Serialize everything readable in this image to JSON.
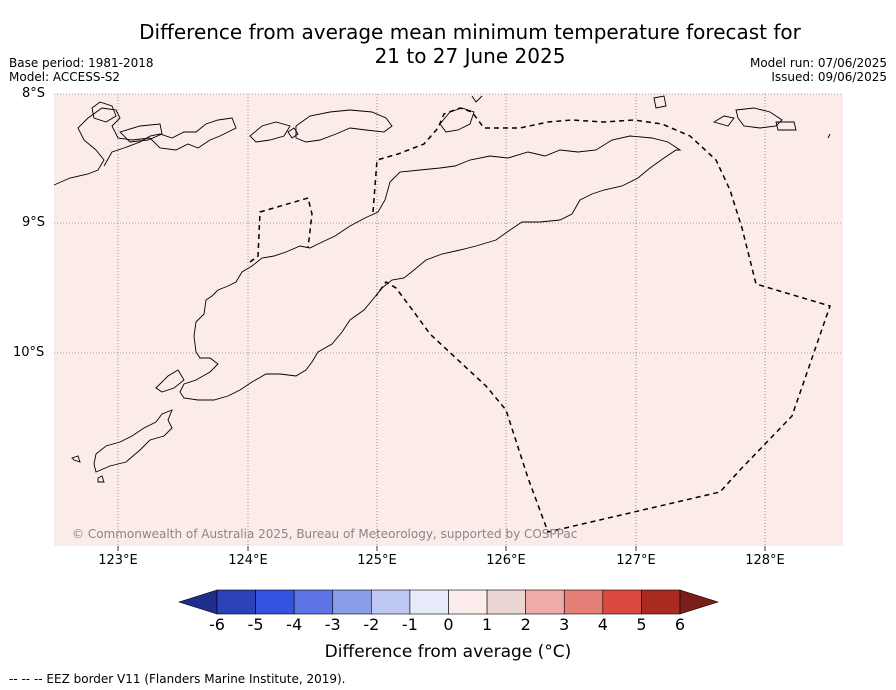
{
  "title_line1": "Difference from average mean minimum temperature forecast for",
  "title_line2": "21 to 27 June 2025",
  "base_period": "Base period: 1981-2018",
  "model": "Model: ACCESS-S2",
  "model_run": "Model run: 07/06/2025",
  "issued": "Issued: 09/06/2025",
  "lat_labels": [
    "8°S",
    "9°S",
    "10°S"
  ],
  "lon_labels": [
    "123°E",
    "124°E",
    "125°E",
    "126°E",
    "127°E",
    "128°E"
  ],
  "copyright": "© Commonwealth of Australia 2025, Bureau of Meteorology, supported by COSPPac",
  "colorbar": {
    "title": "Difference from average (°C)",
    "ticks": [
      "-6",
      "-5",
      "-4",
      "-3",
      "-2",
      "-1",
      "0",
      "1",
      "2",
      "3",
      "4",
      "5",
      "6"
    ],
    "colors": [
      "#1f2e8a",
      "#2a41b8",
      "#3652e0",
      "#5c74e4",
      "#8c9de8",
      "#bfc8f2",
      "#e8ecfa",
      "#fbeceb",
      "#ecd6d4",
      "#eeaca8",
      "#e47f78",
      "#da4a40",
      "#ab2a22",
      "#7a1e1a"
    ]
  },
  "map_fill_color": "#fbebe9",
  "footer": "--  --  -- EEZ border V11 (Flanders Marine Institute, 2019)."
}
